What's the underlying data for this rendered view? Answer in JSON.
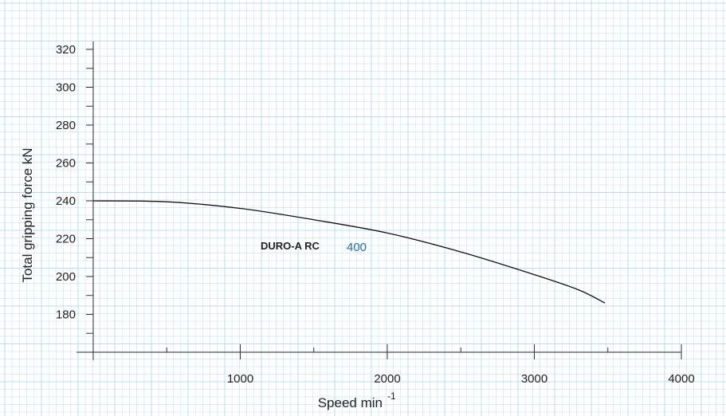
{
  "chart_data": {
    "type": "line",
    "xlabel": "Speed min",
    "xlabel_superscript": "-1",
    "ylabel": "Total gripping force kN",
    "xlim": [
      0,
      4000
    ],
    "ylim": [
      160,
      330
    ],
    "x_ticks": [
      1000,
      2000,
      3000,
      4000
    ],
    "y_ticks": [
      180,
      200,
      220,
      240,
      260,
      280,
      300,
      320
    ],
    "grid": true,
    "grid_color": "#cfe6f3",
    "line_color": "#111111",
    "annotation": {
      "name": "DURO-A RC",
      "size": "400",
      "size_color": "#1a6fb5"
    },
    "series": [
      {
        "x": [
          0,
          500,
          1000,
          1500,
          2000,
          2500,
          3000,
          3300,
          3480
        ],
        "y": [
          240,
          239.5,
          236,
          230,
          223,
          213,
          201,
          193,
          186
        ]
      }
    ]
  }
}
